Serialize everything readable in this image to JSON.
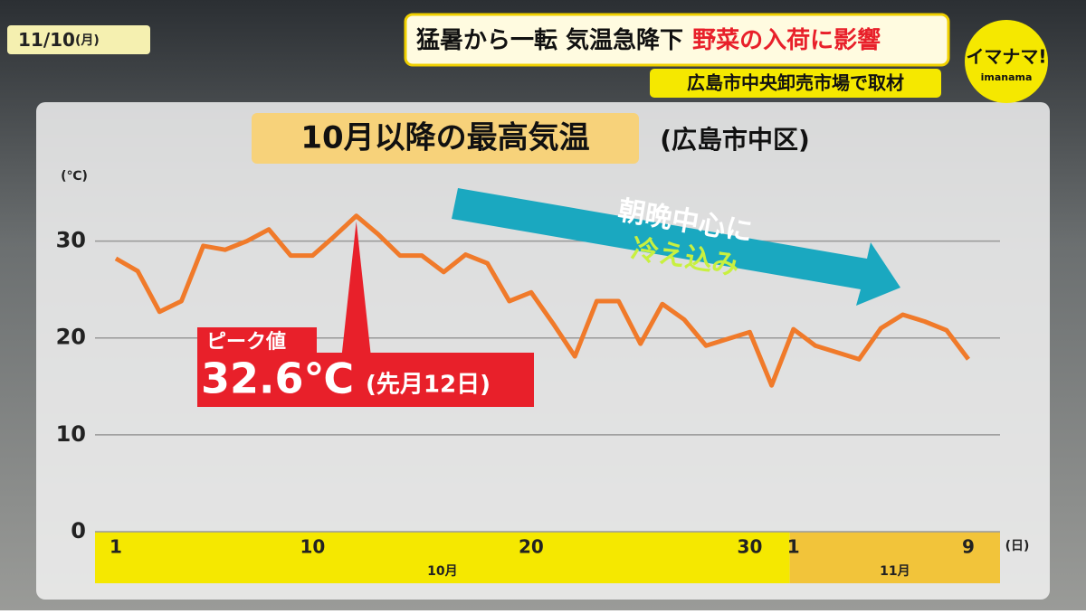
{
  "header": {
    "date": "11/10",
    "weekday": "(月)",
    "headline": "猛暑から一転 気温急降下",
    "headline_highlight": "野菜の入荷に影響",
    "subheadline": "広島市中央卸売市場で取材",
    "logo": "イマナマ!",
    "logo_sub": "imanama"
  },
  "chart_data": {
    "type": "line",
    "title": "10月以降の最高気温",
    "subtitle": "(広島市中区)",
    "y_unit": "(℃)",
    "x_unit": "(日)",
    "categories": [
      "1",
      null,
      null,
      null,
      null,
      null,
      null,
      null,
      null,
      "10",
      null,
      null,
      null,
      null,
      null,
      null,
      null,
      null,
      null,
      "20",
      null,
      null,
      null,
      null,
      null,
      null,
      null,
      null,
      null,
      "30",
      null,
      "1",
      null,
      null,
      null,
      null,
      null,
      null,
      null,
      "9"
    ],
    "months": [
      "10月",
      "11月"
    ],
    "series": [
      {
        "name": "最高気温",
        "color": "#f07a2a",
        "values": [
          28.2,
          26.9,
          22.7,
          23.8,
          29.5,
          29.1,
          30.0,
          31.2,
          28.5,
          28.5,
          30.5,
          32.6,
          30.7,
          28.5,
          28.5,
          26.8,
          28.6,
          27.7,
          23.8,
          24.7,
          21.5,
          18.1,
          23.8,
          23.8,
          19.4,
          23.5,
          21.9,
          19.2,
          19.9,
          20.6,
          15.1,
          20.9,
          19.2,
          18.5,
          17.8,
          21.0,
          22.4,
          21.7,
          20.8,
          17.8
        ]
      }
    ],
    "ylim": [
      0,
      35
    ],
    "yticks": [
      0,
      10,
      20,
      30
    ],
    "grid": true,
    "annotations": {
      "peak_label": "ピーク値",
      "peak_value": "32.6℃",
      "peak_note": "(先月12日)",
      "arrow_line1": "朝晩中心に",
      "arrow_line2": "冷え込み"
    }
  }
}
